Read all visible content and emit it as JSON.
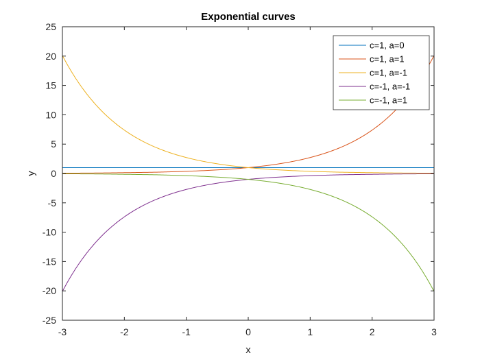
{
  "chart_data": {
    "type": "line",
    "title": "Exponential curves",
    "xlabel": "x",
    "ylabel": "y",
    "xlim": [
      -3,
      3
    ],
    "ylim": [
      -25,
      25
    ],
    "xticks": [
      -3,
      -2,
      -1,
      0,
      1,
      2,
      3
    ],
    "yticks": [
      -25,
      -20,
      -15,
      -10,
      -5,
      0,
      5,
      10,
      15,
      20,
      25
    ],
    "grid": false,
    "legend_position": "top-right",
    "x": [
      -3,
      -2.5,
      -2,
      -1.5,
      -1,
      -0.5,
      0,
      0.5,
      1,
      1.5,
      2,
      2.5,
      3
    ],
    "series": [
      {
        "name": "c=1, a=0",
        "color": "#0072BD",
        "values": [
          1,
          1,
          1,
          1,
          1,
          1,
          1,
          1,
          1,
          1,
          1,
          1,
          1
        ]
      },
      {
        "name": "c=1, a=1",
        "color": "#D95319",
        "values": [
          0.05,
          0.08,
          0.14,
          0.22,
          0.37,
          0.61,
          1,
          1.65,
          2.72,
          4.48,
          7.39,
          12.18,
          20.09
        ]
      },
      {
        "name": "c=1, a=-1",
        "color": "#EDB120",
        "values": [
          20.09,
          12.18,
          7.39,
          4.48,
          2.72,
          1.65,
          1,
          0.61,
          0.37,
          0.22,
          0.14,
          0.08,
          0.05
        ]
      },
      {
        "name": "c=-1, a=-1",
        "color": "#7E2F8E",
        "values": [
          -20.09,
          -12.18,
          -7.39,
          -4.48,
          -2.72,
          -1.65,
          -1,
          -0.61,
          -0.37,
          -0.22,
          -0.14,
          -0.08,
          -0.05
        ]
      },
      {
        "name": "c=-1, a=1",
        "color": "#77AC30",
        "values": [
          -0.05,
          -0.08,
          -0.14,
          -0.22,
          -0.37,
          -0.61,
          -1,
          -1.65,
          -2.72,
          -4.48,
          -7.39,
          -12.18,
          -20.09
        ]
      }
    ]
  }
}
